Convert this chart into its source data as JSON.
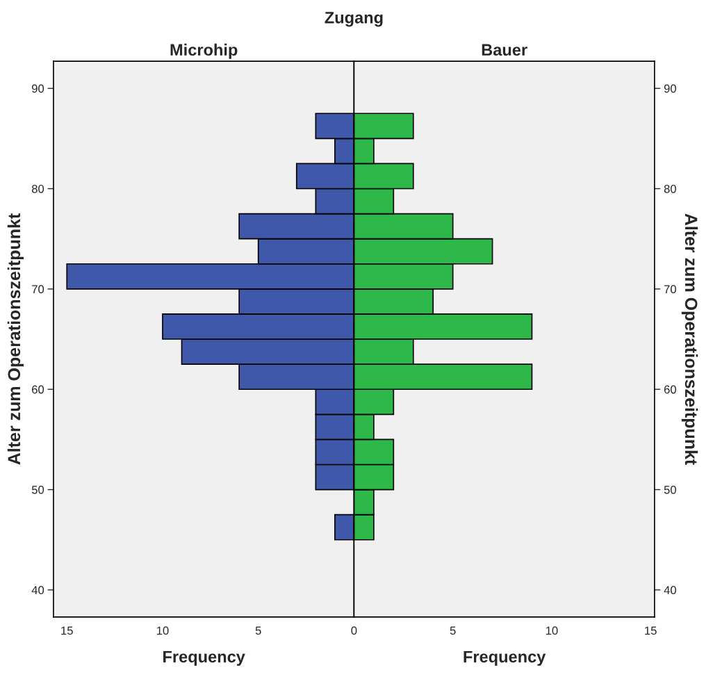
{
  "chart_data": [
    {
      "type": "histogram",
      "orientation": "horizontal",
      "title": "Microhip",
      "xlabel": "Frequency",
      "ylabel": "Alter zum Operationszeitpunkt",
      "annotations": [
        "Zugang"
      ],
      "bins": [
        45,
        47.5,
        50,
        52.5,
        55,
        57.5,
        60,
        62.5,
        65,
        67.5,
        70,
        72.5,
        75,
        77.5,
        80,
        82.5,
        85,
        87.5
      ],
      "values": [
        1,
        null,
        2,
        2,
        2,
        2,
        6,
        9,
        10,
        6,
        15,
        5,
        6,
        2,
        3,
        1,
        2
      ],
      "color": "#3f58aa",
      "xlim": [
        15.7,
        0
      ],
      "xticks": [
        15,
        10,
        5,
        {
          "value": 0,
          "label": null
        }
      ],
      "ylim": [
        37.3,
        92.7
      ],
      "yticks": [
        40,
        50,
        60,
        70,
        80,
        90
      ],
      "grid": false,
      "legend": false
    },
    {
      "type": "histogram",
      "orientation": "horizontal",
      "title": "Bauer",
      "xlabel": "Frequency",
      "ylabel": "Alter zum Operationszeitpunkt",
      "bins": [
        45,
        47.5,
        50,
        52.5,
        55,
        57.5,
        60,
        62.5,
        65,
        67.5,
        70,
        72.5,
        75,
        77.5,
        80,
        82.5,
        85,
        87.5
      ],
      "values": [
        1,
        1,
        2,
        2,
        1,
        2,
        9,
        3,
        9,
        4,
        5,
        7,
        5,
        2,
        3,
        1,
        3
      ],
      "color": "#2eb84a",
      "xlim": [
        0,
        15.2
      ],
      "xticks": [
        0,
        5,
        10,
        15
      ],
      "ylim": [
        37.3,
        92.7
      ],
      "yticks": [
        40,
        50,
        60,
        70,
        80,
        90
      ],
      "grid": false,
      "legend": false
    }
  ]
}
